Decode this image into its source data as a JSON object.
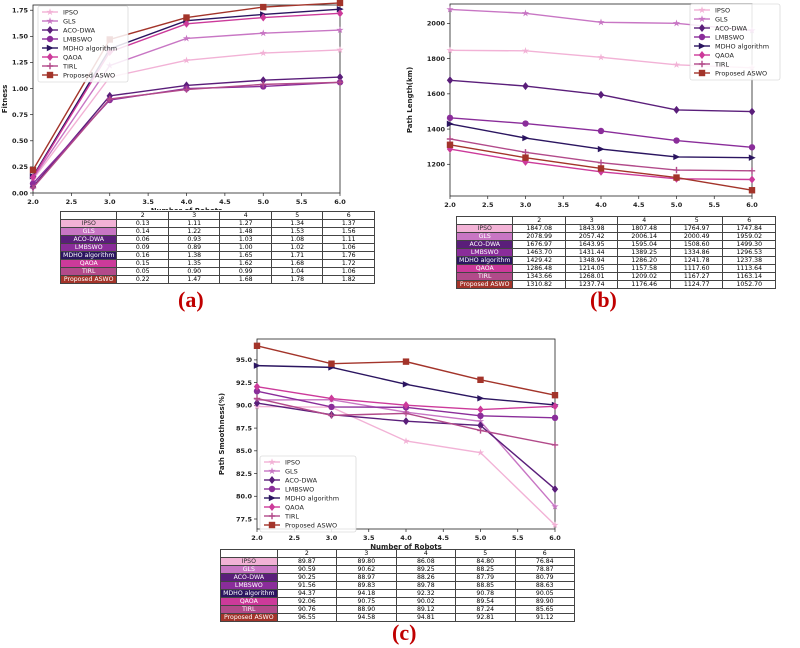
{
  "legend": [
    "IPSO",
    "GLS",
    "ACO-DWA",
    "LMBSWO",
    "MDHO algorithm",
    "QAOA",
    "TIRL",
    "Proposed ASWO"
  ],
  "colors": {
    "IPSO": "#f2b2d6",
    "GLS": "#c876c4",
    "ACO-DWA": "#5a1e7a",
    "LMBSWO": "#8a2d9a",
    "MDHO algorithm": "#2b1560",
    "QAOA": "#cc3a9a",
    "TIRL": "#b24a8a",
    "Proposed ASWO": "#a3342a"
  },
  "panel_labels": {
    "a": "(a)",
    "b": "(b)",
    "c": "(c)"
  },
  "chart_data": [
    {
      "type": "line",
      "id": "a",
      "xlabel": "Number of Robots",
      "ylabel": "Fitness",
      "xlim": [
        2.0,
        6.0
      ],
      "ylim": [
        0.0,
        1.8
      ],
      "xticks": [
        "2.0",
        "2.5",
        "3.0",
        "3.5",
        "4.0",
        "4.5",
        "5.0",
        "5.5",
        "6.0"
      ],
      "yticks": [
        "0.00",
        "0.25",
        "0.50",
        "0.75",
        "1.00",
        "1.25",
        "1.50",
        "1.75"
      ],
      "x": [
        2,
        3,
        4,
        5,
        6
      ],
      "table_header": [
        "2",
        "3",
        "4",
        "5",
        "6"
      ],
      "series": [
        {
          "name": "IPSO",
          "values": [
            0.13,
            1.11,
            1.27,
            1.34,
            1.37
          ],
          "cells": [
            "0.13",
            "1.11",
            "1.27",
            "1.34",
            "1.37"
          ]
        },
        {
          "name": "GLS",
          "values": [
            0.14,
            1.22,
            1.48,
            1.53,
            1.56
          ],
          "cells": [
            "0.14",
            "1.22",
            "1.48",
            "1.53",
            "1.56"
          ]
        },
        {
          "name": "ACO-DWA",
          "values": [
            0.06,
            0.93,
            1.03,
            1.08,
            1.11
          ],
          "cells": [
            "0.06",
            "0.93",
            "1.03",
            "1.08",
            "1.11"
          ]
        },
        {
          "name": "LMBSWO",
          "values": [
            0.09,
            0.89,
            1.0,
            1.02,
            1.06
          ],
          "cells": [
            "0.09",
            "0.89",
            "1.00",
            "1.02",
            "1.06"
          ]
        },
        {
          "name": "MDHO algorithm",
          "values": [
            0.16,
            1.38,
            1.65,
            1.71,
            1.76
          ],
          "cells": [
            "0.16",
            "1.38",
            "1.65",
            "1.71",
            "1.76"
          ]
        },
        {
          "name": "QAOA",
          "values": [
            0.15,
            1.35,
            1.62,
            1.68,
            1.72
          ],
          "cells": [
            "0.15",
            "1.35",
            "1.62",
            "1.68",
            "1.72"
          ]
        },
        {
          "name": "TIRL",
          "values": [
            0.05,
            0.9,
            0.99,
            1.04,
            1.06
          ],
          "cells": [
            "0.05",
            "0.90",
            "0.99",
            "1.04",
            "1.06"
          ]
        },
        {
          "name": "Proposed ASWO",
          "values": [
            0.22,
            1.47,
            1.68,
            1.78,
            1.82
          ],
          "cells": [
            "0.22",
            "1.47",
            "1.68",
            "1.78",
            "1.82"
          ]
        }
      ]
    },
    {
      "type": "line",
      "id": "b",
      "xlabel": "Number of Robots",
      "ylabel": "Path Length(km)",
      "xlim": [
        2.0,
        6.0
      ],
      "ylim": [
        1020,
        2110
      ],
      "xticks": [
        "2.0",
        "2.5",
        "3.0",
        "3.5",
        "4.0",
        "4.5",
        "5.0",
        "5.5",
        "6.0"
      ],
      "yticks": [
        "1200",
        "1400",
        "1600",
        "1800",
        "2000"
      ],
      "x": [
        2,
        3,
        4,
        5,
        6
      ],
      "table_header": [
        "2",
        "3",
        "4",
        "5",
        "6"
      ],
      "series": [
        {
          "name": "IPSO",
          "values": [
            1847.08,
            1843.98,
            1807.48,
            1764.97,
            1747.84
          ],
          "cells": [
            "1847.08",
            "1843.98",
            "1807.48",
            "1764.97",
            "1747.84"
          ]
        },
        {
          "name": "GLS",
          "values": [
            2078.99,
            2057.42,
            2006.14,
            2000.49,
            1959.02
          ],
          "cells": [
            "2078.99",
            "2057.42",
            "2006.14",
            "2000.49",
            "1959.02"
          ]
        },
        {
          "name": "ACO-DWA",
          "values": [
            1676.97,
            1643.95,
            1595.04,
            1508.6,
            1499.3
          ],
          "cells": [
            "1676.97",
            "1643.95",
            "1595.04",
            "1508.60",
            "1499.30"
          ]
        },
        {
          "name": "LMBSWO",
          "values": [
            1463.7,
            1431.44,
            1389.25,
            1334.86,
            1296.53
          ],
          "cells": [
            "1463.70",
            "1431.44",
            "1389.25",
            "1334.86",
            "1296.53"
          ]
        },
        {
          "name": "MDHO algorithm",
          "values": [
            1429.42,
            1348.94,
            1286.2,
            1241.78,
            1237.38
          ],
          "cells": [
            "1429.42",
            "1348.94",
            "1286.20",
            "1241.78",
            "1237.38"
          ]
        },
        {
          "name": "QAOA",
          "values": [
            1286.48,
            1214.05,
            1157.58,
            1117.6,
            1113.64
          ],
          "cells": [
            "1286.48",
            "1214.05",
            "1157.58",
            "1117.60",
            "1113.64"
          ]
        },
        {
          "name": "TIRL",
          "values": [
            1343.66,
            1268.01,
            1209.02,
            1167.27,
            1163.14
          ],
          "cells": [
            "1343.66",
            "1268.01",
            "1209.02",
            "1167.27",
            "1163.14"
          ]
        },
        {
          "name": "Proposed ASWO",
          "values": [
            1310.82,
            1237.74,
            1176.46,
            1124.77,
            1052.7
          ],
          "cells": [
            "1310.82",
            "1237.74",
            "1176.46",
            "1124.77",
            "1052.70"
          ]
        }
      ]
    },
    {
      "type": "line",
      "id": "c",
      "xlabel": "Number of Robots",
      "ylabel": "Path Smoothness(%)",
      "xlim": [
        2.0,
        6.0
      ],
      "ylim": [
        76.4,
        97.3
      ],
      "xticks": [
        "2.0",
        "2.5",
        "3.0",
        "3.5",
        "4.0",
        "4.5",
        "5.0",
        "5.5",
        "6.0"
      ],
      "yticks": [
        "77.5",
        "80.0",
        "82.5",
        "85.0",
        "87.5",
        "90.0",
        "92.5",
        "95.0"
      ],
      "x": [
        2,
        3,
        4,
        5,
        6
      ],
      "table_header": [
        "2",
        "3",
        "4",
        "5",
        "6"
      ],
      "series": [
        {
          "name": "IPSO",
          "values": [
            89.87,
            89.8,
            86.08,
            84.8,
            76.84
          ],
          "cells": [
            "89.87",
            "89.80",
            "86.08",
            "84.80",
            "76.84"
          ]
        },
        {
          "name": "GLS",
          "values": [
            90.59,
            90.62,
            89.25,
            88.25,
            78.87
          ],
          "cells": [
            "90.59",
            "90.62",
            "89.25",
            "88.25",
            "78.87"
          ]
        },
        {
          "name": "ACO-DWA",
          "values": [
            90.25,
            88.97,
            88.26,
            87.79,
            80.79
          ],
          "cells": [
            "90.25",
            "88.97",
            "88.26",
            "87.79",
            "80.79"
          ]
        },
        {
          "name": "LMBSWO",
          "values": [
            91.56,
            89.83,
            89.78,
            88.85,
            88.63
          ],
          "cells": [
            "91.56",
            "89.83",
            "89.78",
            "88.85",
            "88.63"
          ]
        },
        {
          "name": "MDHO algorithm",
          "values": [
            94.37,
            94.18,
            92.32,
            90.78,
            90.05
          ],
          "cells": [
            "94.37",
            "94.18",
            "92.32",
            "90.78",
            "90.05"
          ]
        },
        {
          "name": "QAOA",
          "values": [
            92.06,
            90.75,
            90.02,
            89.54,
            89.9
          ],
          "cells": [
            "92.06",
            "90.75",
            "90.02",
            "89.54",
            "89.90"
          ]
        },
        {
          "name": "TIRL",
          "values": [
            90.76,
            88.9,
            89.12,
            87.24,
            85.65
          ],
          "cells": [
            "90.76",
            "88.90",
            "89.12",
            "87.24",
            "85.65"
          ]
        },
        {
          "name": "Proposed ASWO",
          "values": [
            96.55,
            94.58,
            94.81,
            92.81,
            91.12
          ],
          "cells": [
            "96.55",
            "94.58",
            "94.81",
            "92.81",
            "91.12"
          ]
        }
      ]
    }
  ]
}
